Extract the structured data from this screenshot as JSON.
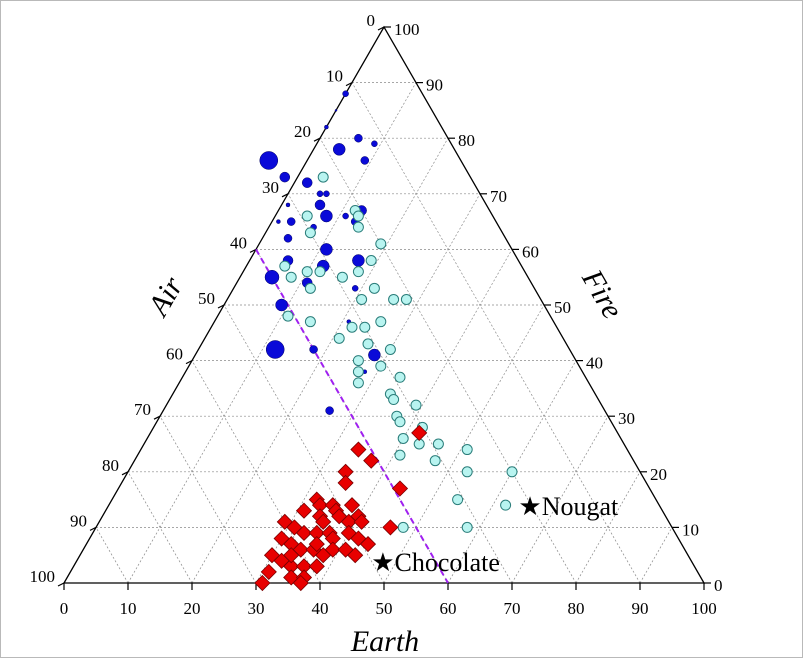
{
  "chart_data": {
    "type": "ternary scatter",
    "axes": {
      "bottom": {
        "label": "Earth",
        "ticks": [
          "0",
          "10",
          "20",
          "30",
          "40",
          "50",
          "60",
          "70",
          "80",
          "90",
          "100"
        ]
      },
      "left": {
        "label": "Air",
        "ticks": [
          "0",
          "10",
          "20",
          "30",
          "40",
          "50",
          "60",
          "70",
          "80",
          "90",
          "100"
        ]
      },
      "right": {
        "label": "Fire",
        "ticks": [
          "0",
          "10",
          "20",
          "30",
          "40",
          "50",
          "60",
          "70",
          "80",
          "90",
          "100"
        ]
      },
      "range": [
        0,
        100
      ],
      "grid": true
    },
    "colors": {
      "blue": "#0a0ad8",
      "cyan": "#b8f4f0",
      "cyan_edge": "#2a7d7a",
      "red": "#e80000",
      "red_edge": "#7a0000",
      "divider": "#a020f0"
    },
    "series": [
      {
        "marker": "circle",
        "color": "blue",
        "points": [
          {
            "earth": 0,
            "fire": 88,
            "size": 3
          },
          {
            "earth": 0,
            "fire": 85,
            "size": 1
          },
          {
            "earth": 0,
            "fire": 82,
            "size": 2
          },
          {
            "earth": -6,
            "fire": 76,
            "size": 9
          },
          {
            "earth": 4,
            "fire": 78,
            "size": 6
          },
          {
            "earth": 9,
            "fire": 76,
            "size": 4
          },
          {
            "earth": 6,
            "fire": 80,
            "size": 4
          },
          {
            "earth": 9,
            "fire": 79,
            "size": 3
          },
          {
            "earth": 2,
            "fire": 72,
            "size": 5
          },
          {
            "earth": -2,
            "fire": 73,
            "size": 5
          },
          {
            "earth": 5,
            "fire": 70,
            "size": 3
          },
          {
            "earth": 6,
            "fire": 70,
            "size": 3
          },
          {
            "earth": 6,
            "fire": 68,
            "size": 5
          },
          {
            "earth": 8,
            "fire": 66,
            "size": 6
          },
          {
            "earth": 11,
            "fire": 66,
            "size": 3
          },
          {
            "earth": 13,
            "fire": 67,
            "size": 5
          },
          {
            "earth": 13,
            "fire": 65,
            "size": 4
          },
          {
            "earth": 7,
            "fire": 64,
            "size": 3
          },
          {
            "earth": 3,
            "fire": 65,
            "size": 4
          },
          {
            "earth": 1,
            "fire": 65,
            "size": 2
          },
          {
            "earth": 1,
            "fire": 68,
            "size": 2
          },
          {
            "earth": 4,
            "fire": 62,
            "size": 4
          },
          {
            "earth": 6,
            "fire": 58,
            "size": 5
          },
          {
            "earth": 11,
            "fire": 60,
            "size": 6
          },
          {
            "earth": 12,
            "fire": 57,
            "size": 6
          },
          {
            "earth": 17,
            "fire": 58,
            "size": 6
          },
          {
            "earth": 16,
            "fire": 55,
            "size": 5
          },
          {
            "earth": 19,
            "fire": 53,
            "size": 3
          },
          {
            "earth": 11,
            "fire": 54,
            "size": 5
          },
          {
            "earth": 5,
            "fire": 55,
            "size": 7
          },
          {
            "earth": 9,
            "fire": 50,
            "size": 6
          },
          {
            "earth": 21,
            "fire": 47,
            "size": 2
          },
          {
            "earth": 18,
            "fire": 42,
            "size": 4
          },
          {
            "earth": 12,
            "fire": 42,
            "size": 9
          },
          {
            "earth": 28,
            "fire": 41,
            "size": 6
          },
          {
            "earth": 28,
            "fire": 38,
            "size": 2
          },
          {
            "earth": 26,
            "fire": 31,
            "size": 4
          }
        ]
      },
      {
        "marker": "circle",
        "color": "cyan",
        "points": [
          {
            "earth": 4,
            "fire": 73,
            "size": 5
          },
          {
            "earth": 5,
            "fire": 66,
            "size": 5
          },
          {
            "earth": 7,
            "fire": 63,
            "size": 5
          },
          {
            "earth": 12,
            "fire": 67,
            "size": 5
          },
          {
            "earth": 13,
            "fire": 66,
            "size": 5
          },
          {
            "earth": 14,
            "fire": 64,
            "size": 5
          },
          {
            "earth": 19,
            "fire": 61,
            "size": 5
          },
          {
            "earth": 6,
            "fire": 57,
            "size": 5
          },
          {
            "earth": 8,
            "fire": 55,
            "size": 5
          },
          {
            "earth": 10,
            "fire": 56,
            "size": 5
          },
          {
            "earth": 12,
            "fire": 56,
            "size": 5
          },
          {
            "earth": 16,
            "fire": 55,
            "size": 5
          },
          {
            "earth": 18,
            "fire": 56,
            "size": 5
          },
          {
            "earth": 19,
            "fire": 58,
            "size": 5
          },
          {
            "earth": 12,
            "fire": 53,
            "size": 5
          },
          {
            "earth": 22,
            "fire": 53,
            "size": 5
          },
          {
            "earth": 21,
            "fire": 51,
            "size": 5
          },
          {
            "earth": 26,
            "fire": 51,
            "size": 5
          },
          {
            "earth": 28,
            "fire": 51,
            "size": 5
          },
          {
            "earth": 11,
            "fire": 48,
            "size": 5
          },
          {
            "earth": 15,
            "fire": 47,
            "size": 5
          },
          {
            "earth": 24,
            "fire": 46,
            "size": 5
          },
          {
            "earth": 26,
            "fire": 47,
            "size": 5
          },
          {
            "earth": 21,
            "fire": 44,
            "size": 5
          },
          {
            "earth": 22,
            "fire": 46,
            "size": 5
          },
          {
            "earth": 26,
            "fire": 43,
            "size": 5
          },
          {
            "earth": 30,
            "fire": 42,
            "size": 5
          },
          {
            "earth": 26,
            "fire": 40,
            "size": 5
          },
          {
            "earth": 30,
            "fire": 39,
            "size": 5
          },
          {
            "earth": 27,
            "fire": 38,
            "size": 5
          },
          {
            "earth": 28,
            "fire": 36,
            "size": 5
          },
          {
            "earth": 34,
            "fire": 34,
            "size": 5
          },
          {
            "earth": 34,
            "fire": 37,
            "size": 5
          },
          {
            "earth": 35,
            "fire": 33,
            "size": 5
          },
          {
            "earth": 39,
            "fire": 32,
            "size": 5
          },
          {
            "earth": 37,
            "fire": 30,
            "size": 5
          },
          {
            "earth": 38,
            "fire": 29,
            "size": 5
          },
          {
            "earth": 42,
            "fire": 28,
            "size": 5
          },
          {
            "earth": 40,
            "fire": 26,
            "size": 5
          },
          {
            "earth": 43,
            "fire": 25,
            "size": 5
          },
          {
            "earth": 41,
            "fire": 23,
            "size": 5
          },
          {
            "earth": 46,
            "fire": 25,
            "size": 5
          },
          {
            "earth": 47,
            "fire": 22,
            "size": 5
          },
          {
            "earth": 51,
            "fire": 24,
            "size": 5
          },
          {
            "earth": 53,
            "fire": 20,
            "size": 5
          },
          {
            "earth": 54,
            "fire": 15,
            "size": 5
          },
          {
            "earth": 62,
            "fire": 14,
            "size": 5
          },
          {
            "earth": 60,
            "fire": 20,
            "size": 5
          },
          {
            "earth": 58,
            "fire": 10,
            "size": 5
          },
          {
            "earth": 48,
            "fire": 10,
            "size": 5
          }
        ]
      },
      {
        "marker": "diamond",
        "color": "red",
        "points": [
          {
            "earth": 34,
            "fire": 24
          },
          {
            "earth": 37,
            "fire": 22
          },
          {
            "earth": 42,
            "fire": 27
          },
          {
            "earth": 34,
            "fire": 20
          },
          {
            "earth": 35,
            "fire": 18
          },
          {
            "earth": 44,
            "fire": 17
          },
          {
            "earth": 32,
            "fire": 15
          },
          {
            "earth": 31,
            "fire": 13
          },
          {
            "earth": 33,
            "fire": 14
          },
          {
            "earth": 35,
            "fire": 14
          },
          {
            "earth": 36,
            "fire": 13
          },
          {
            "earth": 38,
            "fire": 14
          },
          {
            "earth": 40,
            "fire": 12
          },
          {
            "earth": 34,
            "fire": 12
          },
          {
            "earth": 37,
            "fire": 12
          },
          {
            "earth": 39,
            "fire": 11
          },
          {
            "earth": 41,
            "fire": 11
          },
          {
            "earth": 29,
            "fire": 11
          },
          {
            "earth": 31,
            "fire": 10
          },
          {
            "earth": 33,
            "fire": 9
          },
          {
            "earth": 35,
            "fire": 9
          },
          {
            "earth": 37,
            "fire": 9
          },
          {
            "earth": 38,
            "fire": 8
          },
          {
            "earth": 40,
            "fire": 9
          },
          {
            "earth": 42,
            "fire": 8
          },
          {
            "earth": 44,
            "fire": 7
          },
          {
            "earth": 46,
            "fire": 10
          },
          {
            "earth": 30,
            "fire": 8
          },
          {
            "earth": 32,
            "fire": 7
          },
          {
            "earth": 34,
            "fire": 6
          },
          {
            "earth": 36,
            "fire": 6
          },
          {
            "earth": 38,
            "fire": 5
          },
          {
            "earth": 39,
            "fire": 6
          },
          {
            "earth": 41,
            "fire": 6
          },
          {
            "earth": 43,
            "fire": 5
          },
          {
            "earth": 30,
            "fire": 5
          },
          {
            "earth": 32,
            "fire": 4
          },
          {
            "earth": 34,
            "fire": 3
          },
          {
            "earth": 36,
            "fire": 3
          },
          {
            "earth": 38,
            "fire": 3
          },
          {
            "earth": 31,
            "fire": 2
          },
          {
            "earth": 35,
            "fire": 1
          },
          {
            "earth": 37,
            "fire": 1
          },
          {
            "earth": 31,
            "fire": 0
          },
          {
            "earth": 37,
            "fire": 0
          },
          {
            "earth": 33,
            "fire": 5
          },
          {
            "earth": 35,
            "fire": 11
          },
          {
            "earth": 36,
            "fire": 7
          }
        ]
      }
    ],
    "divider_line": {
      "from": {
        "earth": 0,
        "fire": 60
      },
      "to": {
        "earth": 60,
        "fire": 0
      }
    },
    "annotations": [
      {
        "label": "★Nougat",
        "earth": 64,
        "fire": 14
      },
      {
        "label": "★Chocolate",
        "earth": 46,
        "fire": 4
      }
    ]
  }
}
